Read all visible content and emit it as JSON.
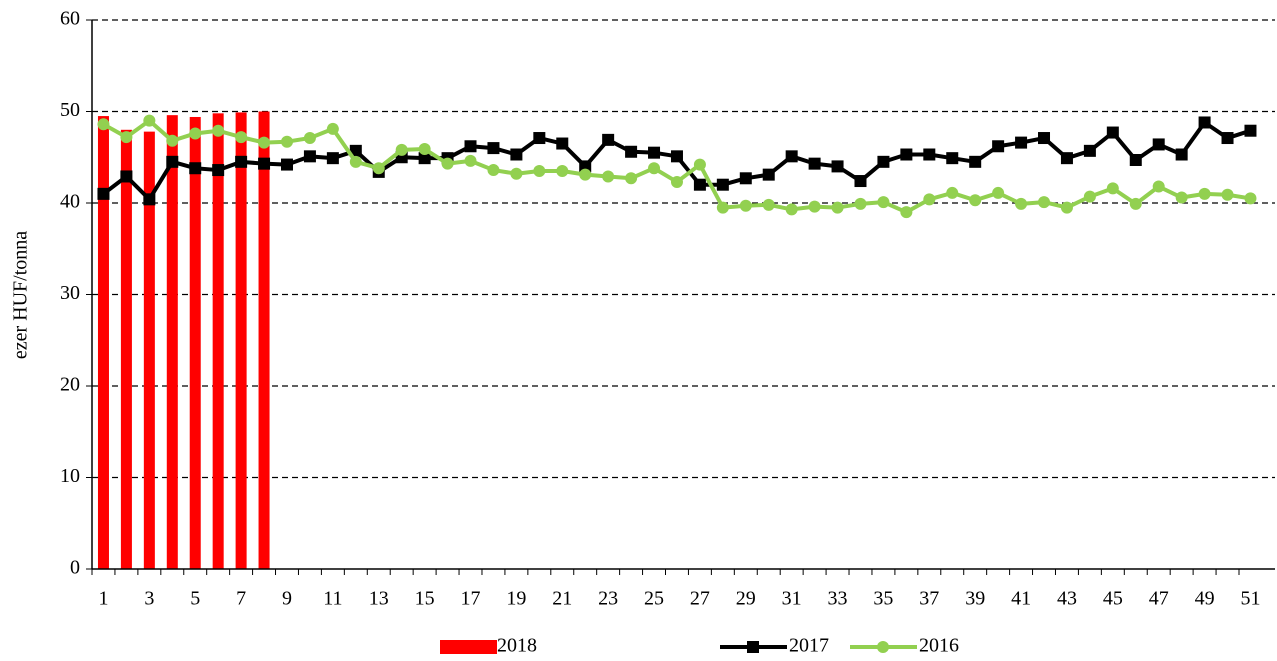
{
  "chart_data": {
    "type": "combo",
    "y_label": "ezer HUF/tonna",
    "categories": [
      "1",
      null,
      "3",
      null,
      "5",
      null,
      "7",
      null,
      "9",
      null,
      "11",
      null,
      "13",
      null,
      "15",
      null,
      "17",
      null,
      "19",
      null,
      "21",
      null,
      "23",
      null,
      "25",
      null,
      "27",
      null,
      "29",
      null,
      "31",
      null,
      "33",
      null,
      "35",
      null,
      "37",
      null,
      "39",
      null,
      "41",
      null,
      "43",
      null,
      "45",
      null,
      "47",
      null,
      "49",
      null,
      "51"
    ],
    "series": [
      {
        "name": "2018",
        "type": "bar",
        "color": "#ff0000",
        "values": [
          49.5,
          48.0,
          47.8,
          49.6,
          49.4,
          49.8,
          49.9,
          50.0,
          null,
          null,
          null,
          null,
          null,
          null,
          null,
          null,
          null,
          null,
          null,
          null,
          null,
          null,
          null,
          null,
          null,
          null,
          null,
          null,
          null,
          null,
          null,
          null,
          null,
          null,
          null,
          null,
          null,
          null,
          null,
          null,
          null,
          null,
          null,
          null,
          null,
          null,
          null,
          null,
          null,
          null,
          null
        ]
      },
      {
        "name": "2017",
        "type": "line",
        "marker": "square",
        "color": "#000000",
        "values": [
          41.0,
          42.9,
          40.4,
          44.5,
          43.8,
          43.6,
          44.5,
          44.3,
          44.2,
          45.1,
          44.9,
          45.7,
          43.4,
          45.0,
          44.9,
          44.9,
          46.2,
          46.0,
          45.3,
          47.1,
          46.5,
          44.0,
          46.9,
          45.6,
          45.5,
          45.1,
          42.0,
          42.0,
          42.7,
          43.1,
          45.1,
          44.3,
          44.0,
          42.4,
          44.5,
          45.3,
          45.3,
          44.9,
          44.5,
          46.2,
          46.6,
          47.1,
          44.9,
          45.7,
          47.7,
          44.7,
          46.4,
          45.3,
          48.8,
          47.1,
          47.9
        ]
      },
      {
        "name": "2016",
        "type": "line",
        "marker": "circle",
        "color": "#92d050",
        "values": [
          48.6,
          47.2,
          49.0,
          46.8,
          47.6,
          47.9,
          47.2,
          46.6,
          46.7,
          47.1,
          48.1,
          44.5,
          43.8,
          45.8,
          45.9,
          44.3,
          44.6,
          43.6,
          43.2,
          43.5,
          43.5,
          43.1,
          42.9,
          42.7,
          43.8,
          42.3,
          44.2,
          39.5,
          39.7,
          39.8,
          39.3,
          39.6,
          39.5,
          39.9,
          40.1,
          39.0,
          40.4,
          41.1,
          40.3,
          41.1,
          39.9,
          40.1,
          39.5,
          40.7,
          41.6,
          39.9,
          41.8,
          40.6,
          41.0,
          40.9,
          40.5
        ]
      }
    ],
    "ylim": [
      0,
      60
    ],
    "yticks": [
      0,
      10,
      20,
      30,
      40,
      50,
      60
    ],
    "grid": true,
    "legend": "bottom"
  }
}
